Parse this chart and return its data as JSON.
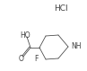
{
  "background_color": "#ffffff",
  "text_color": "#404040",
  "line_color": "#404040",
  "hcl_text": "HCl",
  "hcl_fontsize": 6.5,
  "ho_text": "HO",
  "ho_fontsize": 5.5,
  "o_text": "O",
  "o_fontsize": 5.5,
  "f_text": "F",
  "f_fontsize": 5.5,
  "nh_text": "NH",
  "nh_fontsize": 5.5,
  "figsize": [
    0.97,
    0.79
  ],
  "dpi": 100
}
